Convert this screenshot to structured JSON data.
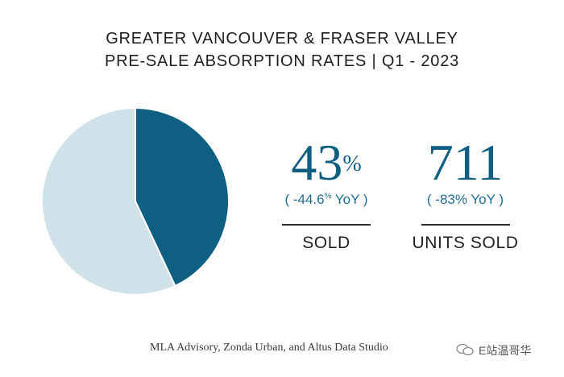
{
  "header": {
    "title_line1": "GREATER VANCOUVER & FRASER VALLEY",
    "title_line2": "PRE-SALE ABSORPTION RATES  |  Q1 - 2023"
  },
  "stats": {
    "sold": {
      "value": "43",
      "unit": "%",
      "yoy_prefix": "( -44.6",
      "yoy_unit": "%",
      "yoy_suffix": " YoY )",
      "label": "SOLD"
    },
    "units": {
      "value": "711",
      "yoy": "( -83% YoY )",
      "label": "UNITS SOLD"
    }
  },
  "source": "MLA Advisory, Zonda Urban, and Altus Data Studio",
  "watermark": "E站温哥华",
  "colors": {
    "sold": "#0e5f82",
    "unsold": "#cfe1e9",
    "accent_text": "#1e6f93"
  },
  "chart_data": {
    "type": "pie",
    "categories": [
      "Sold",
      "Unsold"
    ],
    "values": [
      43,
      57
    ],
    "title": "",
    "legend": "none"
  }
}
